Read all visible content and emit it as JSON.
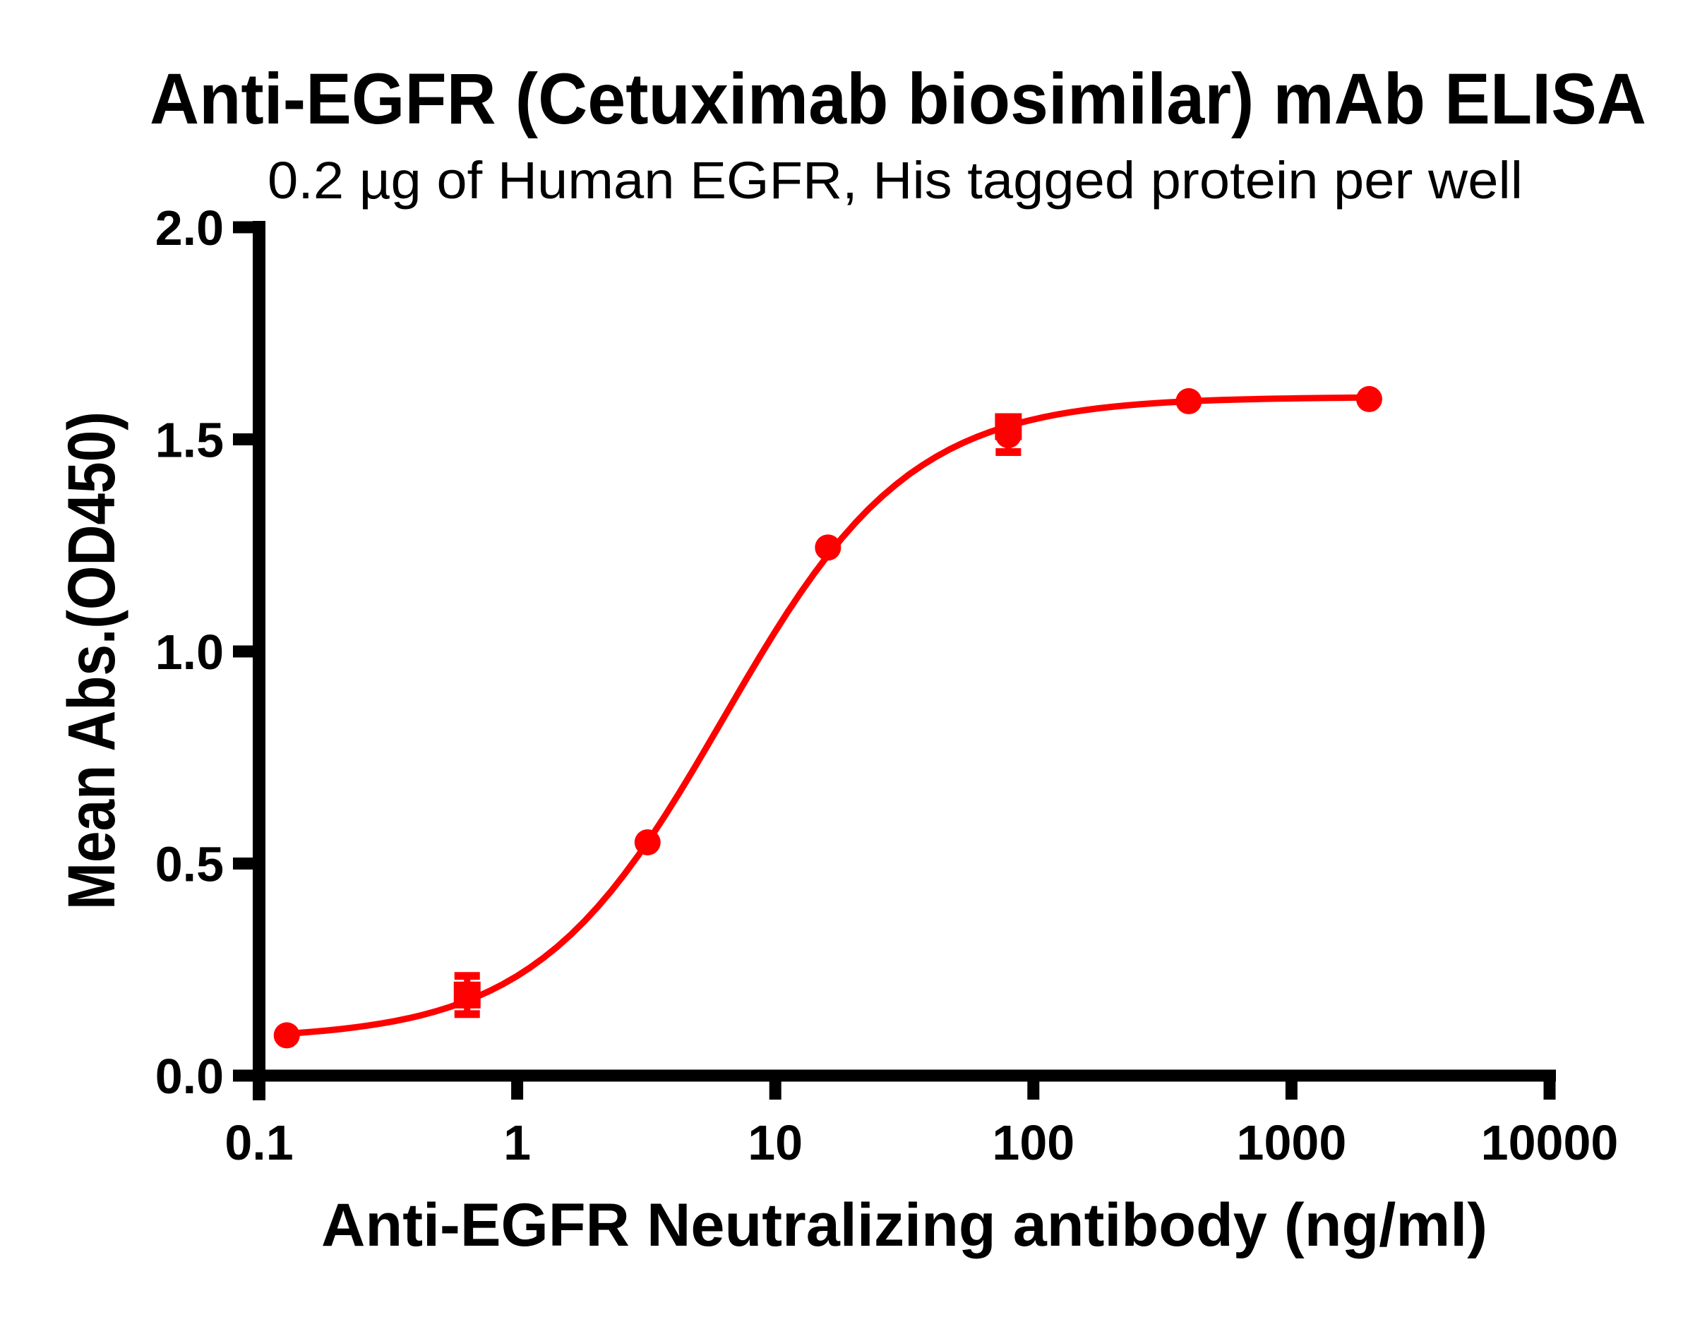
{
  "figure": {
    "title": "Anti-EGFR (Cetuximab biosimilar) mAb ELISA",
    "subtitle": "0.2 µg of Human EGFR, His tagged protein per well"
  },
  "chart_data": {
    "type": "scatter",
    "title": "Anti-EGFR (Cetuximab biosimilar) mAb ELISA",
    "subtitle": "0.2 µg of Human EGFR, His tagged protein per well",
    "xlabel": "Anti-EGFR Neutralizing antibody (ng/ml)",
    "ylabel": "Mean Abs.(OD450)",
    "x_scale": "log10",
    "xlim": [
      0.1,
      10000
    ],
    "ylim": [
      0.0,
      2.0
    ],
    "grid": false,
    "legend": "none",
    "x_ticks": [
      0.1,
      1,
      10,
      100,
      1000,
      10000
    ],
    "x_tick_labels": [
      "0.1",
      "1",
      "10",
      "100",
      "1000",
      "10000"
    ],
    "y_ticks": [
      0.0,
      0.5,
      1.0,
      1.5,
      2.0
    ],
    "y_tick_labels": [
      "0.0",
      "0.5",
      "1.0",
      "1.5",
      "2.0"
    ],
    "series": [
      {
        "name": "anti-egfr-mab-circles",
        "marker": "circle",
        "color": "#FF0000",
        "points": [
          {
            "x": 0.128,
            "y": 0.095
          },
          {
            "x": 3.2,
            "y": 0.55
          },
          {
            "x": 16,
            "y": 1.245
          },
          {
            "x": 80,
            "y": 1.51,
            "err": 0.04
          },
          {
            "x": 400,
            "y": 1.59
          },
          {
            "x": 2000,
            "y": 1.595
          }
        ]
      },
      {
        "name": "anti-egfr-mab-squares",
        "marker": "square",
        "color": "#FF0000",
        "points": [
          {
            "x": 0.64,
            "y": 0.19,
            "err": 0.045
          },
          {
            "x": 80,
            "y": 1.53
          }
        ]
      }
    ],
    "fit_curve": {
      "model": "4PL",
      "bottom": 0.085,
      "top": 1.6,
      "ec50_ng_ml": 6.3,
      "hill": 1.2,
      "x_start": 0.128,
      "x_end": 2000,
      "color": "#FF0000"
    },
    "colors": {
      "accent": "#FF0000",
      "axis": "#000000",
      "background": "#FFFFFF"
    }
  }
}
